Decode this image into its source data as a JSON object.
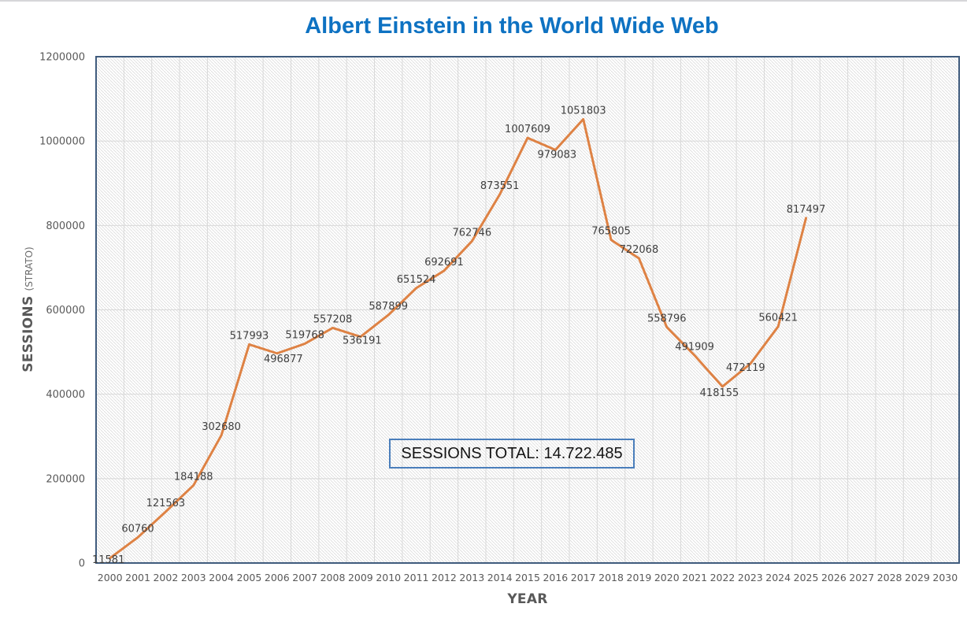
{
  "title": {
    "text": "Albert Einstein in the World Wide Web",
    "color": "#0E72C2"
  },
  "chart_data": {
    "type": "line",
    "title": "Albert Einstein in the World Wide Web",
    "xlabel": "YEAR",
    "ylabel": "SESSIONS",
    "ylabel_suffix": "(STRATO)",
    "categories": [
      "2000",
      "2001",
      "2002",
      "2003",
      "2004",
      "2005",
      "2006",
      "2007",
      "2008",
      "2009",
      "2010",
      "2011",
      "2012",
      "2013",
      "2014",
      "2015",
      "2016",
      "2017",
      "2018",
      "2019",
      "2020",
      "2021",
      "2022",
      "2023",
      "2024",
      "2025",
      "2026",
      "2027",
      "2028",
      "2029",
      "2030"
    ],
    "series": [
      {
        "name": "Sessions",
        "values": [
          11581,
          60760,
          121563,
          184188,
          302680,
          517993,
          496877,
          519768,
          557208,
          536191,
          587899,
          651524,
          692691,
          762746,
          873551,
          1007609,
          979083,
          1051803,
          765805,
          722068,
          558796,
          491909,
          418155,
          472119,
          560421,
          817497
        ]
      }
    ],
    "ylim": [
      0,
      1200000
    ],
    "ytick_step": 200000,
    "yticks": [
      0,
      200000,
      400000,
      600000,
      800000,
      1000000,
      1200000
    ],
    "grid": true,
    "legend": "none",
    "plot_fill": "diagonal-hatch"
  },
  "total_box": {
    "text": "SESSIONS TOTAL: 14.722.485"
  },
  "colors": {
    "title": "#0E72C2",
    "line": "#DE8244",
    "plot_border": "#3F5B7D",
    "gridline": "#D8D8D8",
    "hatch": "#DDDDDD",
    "axis_text": "#595959",
    "data_label": "#3F3F3F",
    "total_box_border": "#4A7EBB",
    "total_box_text": "#141414"
  }
}
